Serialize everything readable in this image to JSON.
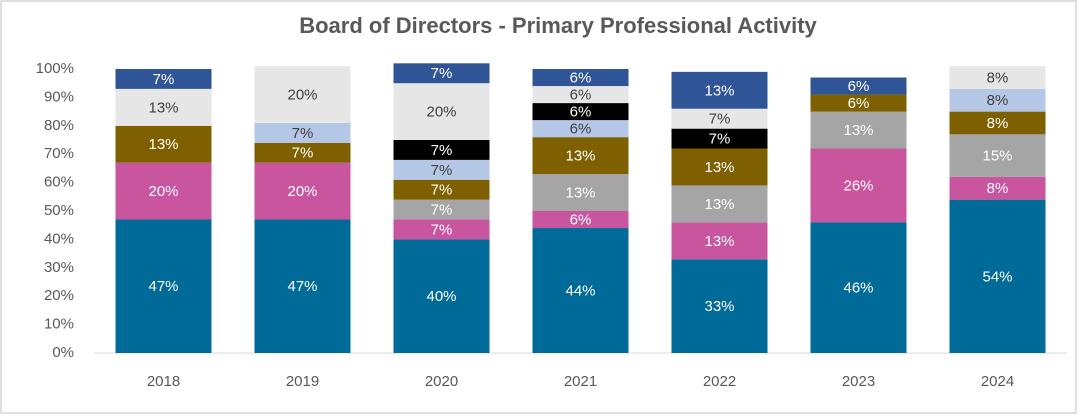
{
  "chart_data": {
    "type": "stacked_bar",
    "title": "Board of Directors - Primary Professional Activity",
    "categories": [
      "2018",
      "2019",
      "2020",
      "2021",
      "2022",
      "2023",
      "2024"
    ],
    "ylim": [
      0,
      100
    ],
    "yticks": [
      {
        "value": 0,
        "label": "0%"
      },
      {
        "value": 10,
        "label": "10%"
      },
      {
        "value": 20,
        "label": "20%"
      },
      {
        "value": 30,
        "label": "30%"
      },
      {
        "value": 40,
        "label": "40%"
      },
      {
        "value": 50,
        "label": "50%"
      },
      {
        "value": 60,
        "label": "60%"
      },
      {
        "value": 70,
        "label": "70%"
      },
      {
        "value": 80,
        "label": "80%"
      },
      {
        "value": 90,
        "label": "90%"
      },
      {
        "value": 100,
        "label": "100%"
      }
    ],
    "series": [
      {
        "color": "#006a98",
        "values": [
          47,
          47,
          40,
          44,
          33,
          46,
          54
        ],
        "value_labels": [
          "47%",
          "47%",
          "40%",
          "44%",
          "33%",
          "46%",
          "54%"
        ]
      },
      {
        "color": "#c9559f",
        "values": [
          20,
          20,
          7,
          6,
          13,
          26,
          8
        ],
        "value_labels": [
          "20%",
          "20%",
          "7%",
          "6%",
          "13%",
          "26%",
          "8%"
        ]
      },
      {
        "color": "#a5a5a5",
        "values": [
          null,
          null,
          7,
          13,
          13,
          13,
          15
        ],
        "value_labels": [
          null,
          null,
          "7%",
          "13%",
          "13%",
          "13%",
          "15%"
        ]
      },
      {
        "color": "#7f6000",
        "values": [
          13,
          7,
          7,
          13,
          13,
          6,
          8
        ],
        "value_labels": [
          "13%",
          "7%",
          "7%",
          "13%",
          "13%",
          "6%",
          "8%"
        ]
      },
      {
        "color": "#b4c7e7",
        "values": [
          null,
          7,
          7,
          6,
          null,
          null,
          8
        ],
        "value_labels": [
          null,
          "7%",
          "7%",
          "6%",
          null,
          null,
          "8%"
        ]
      },
      {
        "color": "#000000",
        "values": [
          null,
          null,
          7,
          6,
          7,
          null,
          null
        ],
        "value_labels": [
          null,
          null,
          "7%",
          "6%",
          "7%",
          null,
          null
        ]
      },
      {
        "color": "#e7e6e6",
        "values": [
          13,
          20,
          20,
          6,
          7,
          null,
          8
        ],
        "value_labels": [
          "13%",
          "20%",
          "20%",
          "6%",
          "7%",
          null,
          "8%"
        ]
      },
      {
        "color": "#2f5597",
        "values": [
          7,
          null,
          7,
          6,
          13,
          6,
          null
        ],
        "value_labels": [
          "7%",
          null,
          "7%",
          "6%",
          "13%",
          "6%",
          null
        ]
      }
    ]
  }
}
